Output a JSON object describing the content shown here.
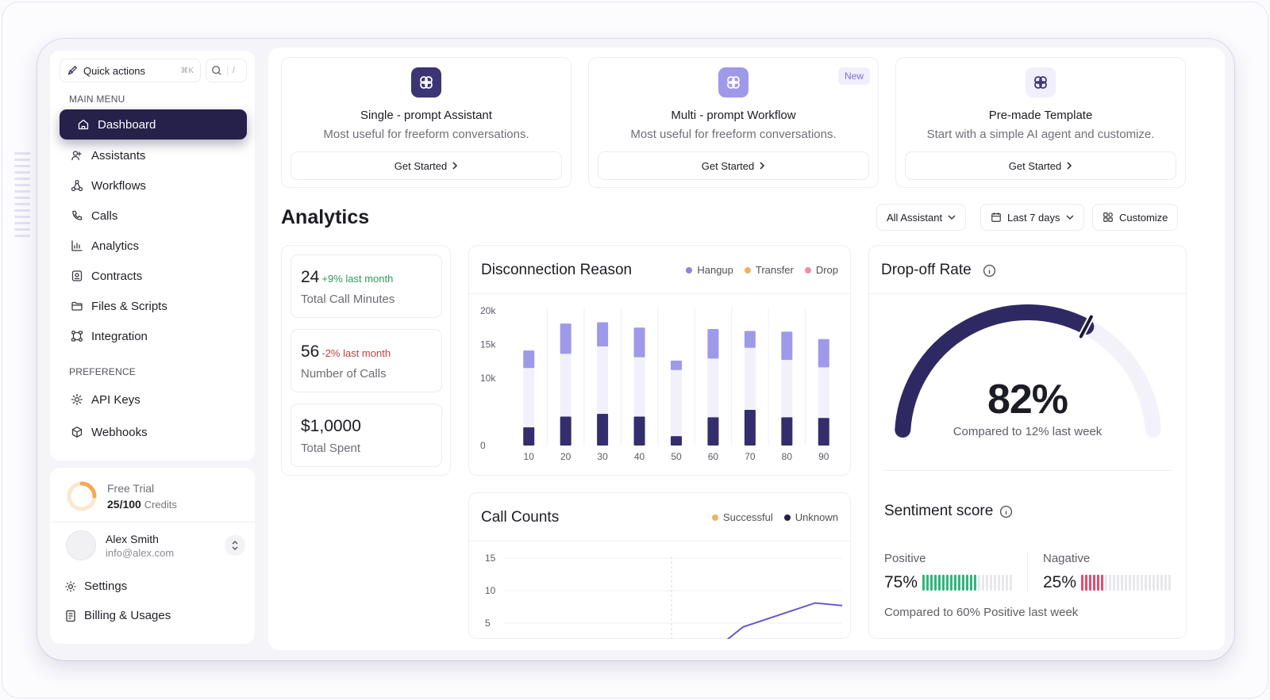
{
  "sidebar": {
    "quick_actions_label": "Quick actions",
    "quick_actions_shortcut": "⌘K",
    "search_shortcut": "/",
    "main_menu_label": "MAIN MENU",
    "main_items": [
      {
        "label": "Dashboard",
        "icon": "home-icon",
        "active": true
      },
      {
        "label": "Assistants",
        "icon": "users-icon"
      },
      {
        "label": "Workflows",
        "icon": "workflow-icon"
      },
      {
        "label": "Calls",
        "icon": "phone-icon"
      },
      {
        "label": "Analytics",
        "icon": "bar-chart-icon"
      },
      {
        "label": "Contracts",
        "icon": "contract-icon"
      },
      {
        "label": "Files & Scripts",
        "icon": "folder-icon"
      },
      {
        "label": "Integration",
        "icon": "integration-icon"
      }
    ],
    "preference_label": "PREFERENCE",
    "preference_items": [
      {
        "label": "API Keys",
        "icon": "gear-icon"
      },
      {
        "label": "Webhooks",
        "icon": "cube-icon"
      }
    ],
    "trial": {
      "title": "Free Trial",
      "used": "25/100",
      "unit": "Credits",
      "progress": 0.25
    },
    "user": {
      "name": "Alex Smith",
      "email": "info@alex.com"
    },
    "settings_label": "Settings",
    "billing_label": "Billing & Usages"
  },
  "start_cards": [
    {
      "title": "Single - prompt Assistant",
      "subtitle": "Most useful for freeform conversations.",
      "button": "Get Started",
      "badge": ""
    },
    {
      "title": "Multi - prompt Workflow",
      "subtitle": "Most useful for freeform conversations.",
      "button": "Get Started",
      "badge": "New"
    },
    {
      "title": "Pre-made Template",
      "subtitle": "Start with a simple AI agent and customize.",
      "button": "Get Started",
      "badge": ""
    }
  ],
  "analytics": {
    "title": "Analytics",
    "filter_assistant": "All Assistant",
    "filter_range": "Last 7 days",
    "customize_label": "Customize"
  },
  "stats": [
    {
      "value": "24",
      "delta": "+9% last month",
      "label": "Total Call Minutes",
      "trend": "up"
    },
    {
      "value": "56",
      "delta": "-2% last month",
      "label": "Number of Calls",
      "trend": "down"
    },
    {
      "value": "$1,0000",
      "delta": "",
      "label": "Total Spent",
      "trend": ""
    }
  ],
  "disconnection": {
    "title": "Disconnection Reason",
    "legend": [
      "Hangup",
      "Transfer",
      "Drop"
    ]
  },
  "call_counts": {
    "title": "Call Counts",
    "legend": [
      "Successful",
      "Unknown"
    ]
  },
  "dropoff": {
    "title": "Drop-off Rate",
    "value": "82%",
    "compare": "Compared to 12% last week",
    "fraction": 0.82
  },
  "sentiment": {
    "title": "Sentiment score",
    "positive_label": "Positive",
    "positive_value": "75%",
    "negative_label": "Nagative",
    "negative_value": "25%",
    "compare": "Compared to 60% Positive last week"
  },
  "colors": {
    "primary": "#25214a",
    "accent_light": "#9f99ea",
    "transfer": "#f0b160",
    "drop": "#f08ea4",
    "positive": "#2fb67d",
    "negative": "#e84a6c",
    "up_text": "#2f9a5c",
    "down_text": "#c2413e",
    "line": "#6a5acd"
  },
  "chart_data": [
    {
      "type": "bar",
      "title": "Disconnection Reason",
      "categories": [
        "10",
        "20",
        "30",
        "40",
        "50",
        "60",
        "70",
        "80",
        "90"
      ],
      "series": [
        {
          "name": "Hangup",
          "values": [
            2700,
            4300,
            4700,
            4300,
            1400,
            4200,
            5300,
            4200,
            4100
          ]
        },
        {
          "name": "Transfer",
          "values": [
            8800,
            9300,
            10000,
            8800,
            9800,
            8700,
            9200,
            8500,
            7500
          ]
        },
        {
          "name": "Drop",
          "values": [
            2600,
            4500,
            3600,
            4400,
            1400,
            4400,
            2500,
            4200,
            4200
          ]
        }
      ],
      "yticks": [
        "0",
        "10k",
        "15k",
        "20k"
      ],
      "ylim": [
        0,
        20000
      ]
    },
    {
      "type": "line",
      "title": "Call Counts",
      "series": [
        {
          "name": "Successful",
          "values": []
        },
        {
          "name": "Unknown",
          "values": [
            0,
            4.4,
            8.1,
            7.7
          ]
        }
      ],
      "yticks": [
        "5",
        "10",
        "15"
      ],
      "ylim": [
        0,
        15
      ]
    }
  ]
}
